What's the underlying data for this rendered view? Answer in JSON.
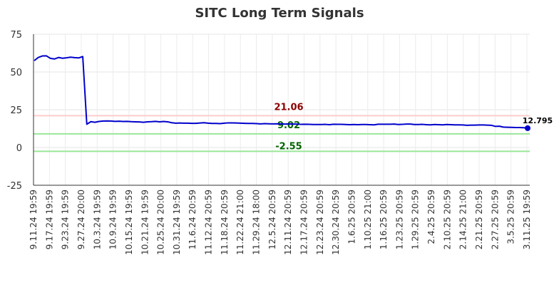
{
  "chart_data": {
    "type": "line",
    "title": "SITC Long Term Signals",
    "xlabel": "",
    "ylabel": "",
    "ylim": [
      -25,
      75
    ],
    "yticks": [
      -25,
      0,
      25,
      50,
      75
    ],
    "grid": true,
    "x_tick_labels": [
      "9.11.24 19:59",
      "9.17.24 19:59",
      "9.23.24 19:59",
      "9.27.24 20:00",
      "10.3.24 19:59",
      "10.9.24 19:59",
      "10.15.24 19:59",
      "10.21.24 19:59",
      "10.25.24 20:00",
      "10.31.24 19:59",
      "11.6.24 20:59",
      "11.12.24 20:59",
      "11.18.24 20:59",
      "11.22.24 21:00",
      "11.29.24 18:00",
      "12.5.24 20:59",
      "12.11.24 20:59",
      "12.17.24 20:59",
      "12.23.24 20:59",
      "12.30.24 20:59",
      "1.6.25 20:59",
      "1.10.25 21:00",
      "1.16.25 20:59",
      "1.23.25 20:59",
      "1.29.25 20:59",
      "2.4.25 20:59",
      "2.10.25 20:59",
      "2.14.25 21:00",
      "2.21.25 20:59",
      "2.27.25 20:59",
      "3.5.25 20:59",
      "3.11.25 19:59"
    ],
    "series": [
      {
        "color": "#0000cc",
        "values": [
          57.5,
          59.6,
          60.6,
          60.7,
          59.0,
          58.6,
          59.6,
          59.1,
          59.4,
          59.8,
          59.5,
          59.3,
          60.2,
          15.4,
          17.1,
          16.7,
          17.2,
          17.5,
          17.6,
          17.5,
          17.3,
          17.4,
          17.2,
          17.3,
          17.1,
          17.0,
          16.9,
          16.7,
          17.0,
          17.1,
          17.3,
          17.0,
          17.2,
          17.0,
          16.4,
          16.1,
          16.2,
          16.1,
          16.1,
          16.0,
          16.0,
          16.2,
          16.4,
          16.1,
          15.9,
          15.9,
          15.8,
          16.1,
          16.3,
          16.3,
          16.2,
          16.1,
          16.0,
          15.9,
          15.9,
          15.8,
          15.6,
          15.8,
          15.7,
          15.6,
          15.7,
          15.6,
          15.5,
          15.6,
          15.5,
          15.5,
          15.3,
          15.4,
          15.3,
          15.2,
          15.2,
          15.2,
          15.3,
          15.1,
          15.4,
          15.3,
          15.3,
          15.2,
          15.1,
          15.2,
          15.1,
          15.2,
          15.2,
          15.1,
          15.0,
          15.4,
          15.4,
          15.4,
          15.4,
          15.5,
          15.2,
          15.3,
          15.5,
          15.5,
          15.2,
          15.2,
          15.3,
          15.1,
          15.0,
          15.2,
          15.1,
          15.0,
          15.2,
          15.1,
          15.0,
          15.0,
          14.9,
          14.7,
          14.8,
          14.8,
          14.9,
          14.9,
          14.8,
          14.7,
          14.0,
          14.1,
          13.5,
          13.4,
          13.3,
          13.2,
          13.2,
          13.1,
          12.795
        ],
        "last_label": "12.795"
      }
    ],
    "reference_lines": [
      {
        "value": 21.06,
        "label": "21.06",
        "line_color": "#ffcccc",
        "text_color": "#8b0000"
      },
      {
        "value": 9.02,
        "label": "9.02",
        "line_color": "#99e699",
        "text_color": "#006400"
      },
      {
        "value": -2.55,
        "label": "-2.55",
        "line_color": "#99e699",
        "text_color": "#006400"
      }
    ]
  }
}
